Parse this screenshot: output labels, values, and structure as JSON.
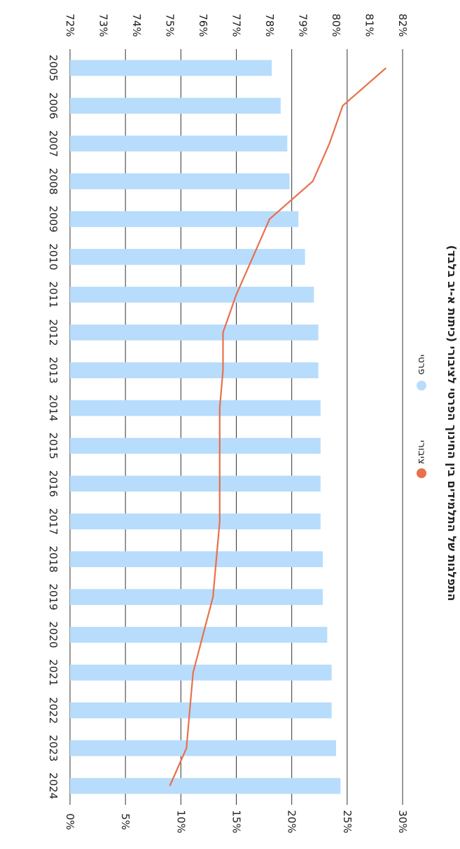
{
  "chart_data": {
    "type": "bar",
    "title": "התפלגות של התלמידים בין החינוך הפרטי לציבורי (כיתות א-יב בלבד)",
    "categories": [
      "2005",
      "2006",
      "2007",
      "2008",
      "2009",
      "2010",
      "2011",
      "2012",
      "2013",
      "2014",
      "2015",
      "2016",
      "2017",
      "2018",
      "2019",
      "2020",
      "2021",
      "2022",
      "2023",
      "2024"
    ],
    "series": [
      {
        "name": "פרטי",
        "type": "bar",
        "axis": "bottom",
        "color": "#b8dcfb",
        "values": [
          18.2,
          19.0,
          19.6,
          19.8,
          20.6,
          21.2,
          22.0,
          22.4,
          22.4,
          22.6,
          22.6,
          22.6,
          22.6,
          22.8,
          22.8,
          23.2,
          23.6,
          23.6,
          24.0,
          24.4
        ]
      },
      {
        "name": "ציבורי",
        "type": "line",
        "axis": "top",
        "color": "#e8704b",
        "values": [
          81.5,
          80.2,
          79.8,
          79.3,
          78.0,
          77.5,
          77.0,
          76.6,
          76.6,
          76.5,
          76.5,
          76.5,
          76.5,
          76.4,
          76.3,
          76.0,
          75.7,
          75.6,
          75.5,
          75.0
        ]
      }
    ],
    "bottom_axis": {
      "ticks": [
        "0%",
        "5%",
        "10%",
        "15%",
        "20%",
        "25%",
        "30%"
      ],
      "range": [
        0,
        30
      ]
    },
    "top_axis": {
      "ticks": [
        "72%",
        "73%",
        "74%",
        "75%",
        "76%",
        "77%",
        "78%",
        "79%",
        "80%",
        "81%",
        "82%"
      ],
      "range": [
        72,
        82
      ]
    },
    "grid": true,
    "orientation": "rotated-90",
    "legend_position": "right"
  }
}
